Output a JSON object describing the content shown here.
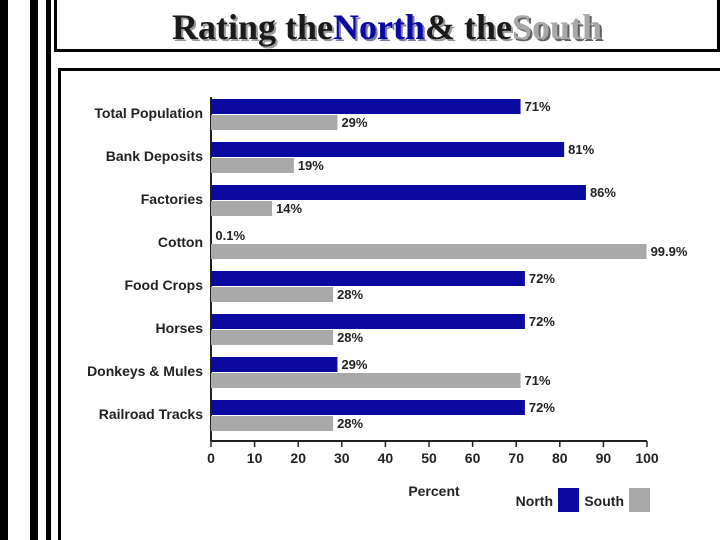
{
  "header": {
    "title_part1": "Rating the",
    "title_north": "North",
    "title_part2": "& the",
    "title_south": "South"
  },
  "chart_data": {
    "type": "bar",
    "orientation": "horizontal",
    "categories": [
      "Total Population",
      "Bank Deposits",
      "Factories",
      "Cotton",
      "Food Crops",
      "Horses",
      "Donkeys & Mules",
      "Railroad Tracks"
    ],
    "series": [
      {
        "name": "North",
        "color": "#0a0aa0",
        "values": [
          71,
          81,
          86,
          0.1,
          72,
          72,
          29,
          72
        ],
        "labels": [
          "71%",
          "81%",
          "86%",
          "0.1%",
          "72%",
          "72%",
          "29%",
          "72%"
        ]
      },
      {
        "name": "South",
        "color": "#a9a9a9",
        "values": [
          29,
          19,
          14,
          99.9,
          28,
          28,
          71,
          28
        ],
        "labels": [
          "29%",
          "19%",
          "14%",
          "99.9%",
          "28%",
          "28%",
          "71%",
          "28%"
        ]
      }
    ],
    "xlabel": "Percent",
    "ylabel": "",
    "xlim": [
      0,
      100
    ],
    "xticks": [
      0,
      10,
      20,
      30,
      40,
      50,
      60,
      70,
      80,
      90,
      100
    ],
    "grid": false,
    "legend_position": "bottom-right"
  }
}
